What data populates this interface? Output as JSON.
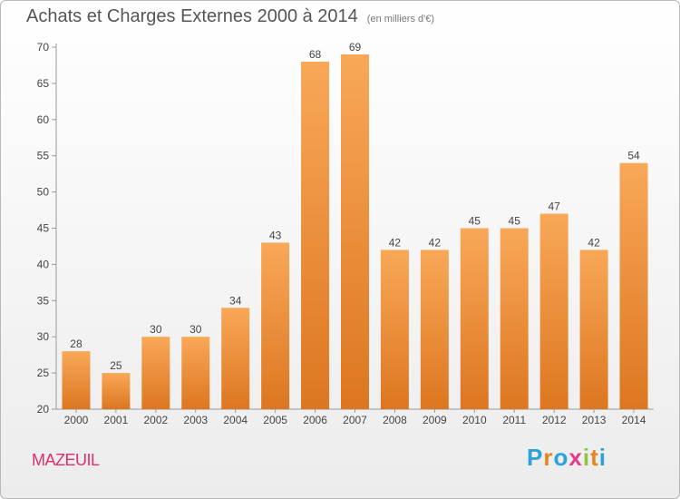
{
  "chart_data": {
    "type": "bar",
    "title": "Achats et Charges Externes 2000 à 2014",
    "subtitle": "(en milliers d'€)",
    "categories": [
      "2000",
      "2001",
      "2002",
      "2003",
      "2004",
      "2005",
      "2006",
      "2007",
      "2008",
      "2009",
      "2010",
      "2011",
      "2012",
      "2013",
      "2014"
    ],
    "values": [
      28,
      25,
      30,
      30,
      34,
      43,
      68,
      69,
      42,
      42,
      45,
      45,
      47,
      42,
      54
    ],
    "ylim": [
      20,
      70
    ],
    "yticks": [
      20,
      25,
      30,
      35,
      40,
      45,
      50,
      55,
      60,
      65,
      70
    ],
    "grid": false,
    "bar_color_top": "#f8a858",
    "bar_color_bottom": "#dd7620",
    "xlabel": "",
    "ylabel": ""
  },
  "footer": {
    "commune": "MAZEUIL",
    "brand": "Proxiti",
    "brand_colors": [
      "#2ba3d8",
      "#e8831f",
      "#2ba3d8",
      "#e83c8a",
      "#8cc63f",
      "#e8831f",
      "#2ba3d8"
    ]
  }
}
